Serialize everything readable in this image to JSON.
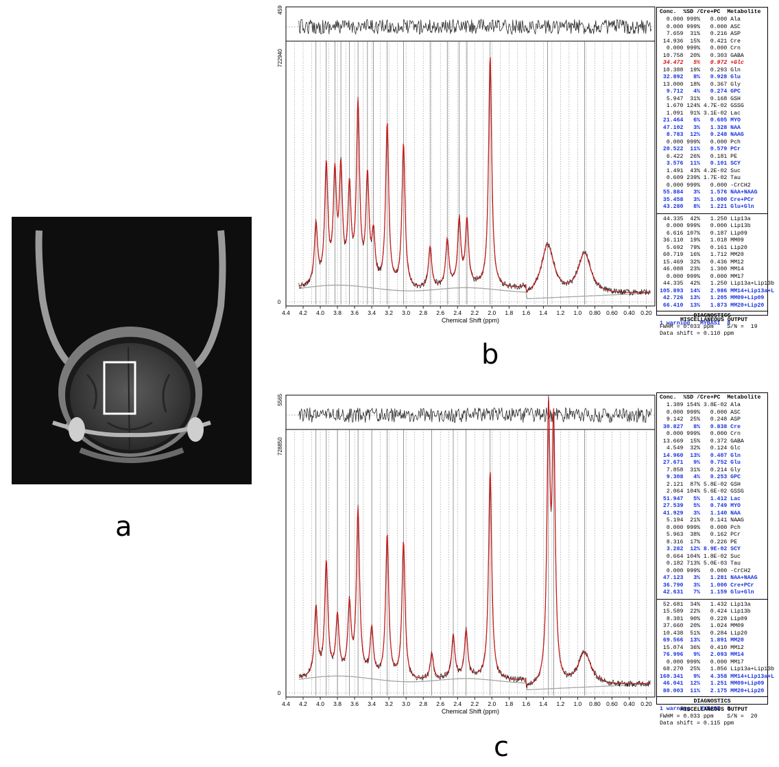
{
  "labels": {
    "a": "a",
    "b": "b",
    "c": "c"
  },
  "table_header": "Conc.  %SD /Cre+PC  Metabolite",
  "diagnostics_title": "DIAGNOSTICS",
  "misc_title": "MISCELLANEOUS OUTPUT",
  "chart_data": [
    {
      "panel": "b",
      "type": "line",
      "xlabel": "Chemical Shift (ppm)",
      "x_ticks": [
        "4.4",
        "4.2",
        "4.0",
        "3.8",
        "3.6",
        "3.4",
        "3.2",
        "3.0",
        "2.8",
        "2.6",
        "2.4",
        "2.2",
        "2.0",
        "1.8",
        "1.6",
        "1.4",
        "1.2",
        "1.0",
        "0.80",
        "0.60",
        "0.40",
        "0.20"
      ],
      "xlim": [
        4.4,
        0.1
      ],
      "residual_ytop": "459",
      "main_ytop": "722940",
      "main_yzero": "0",
      "peaks": [
        {
          "ppm": 4.05,
          "h": 0.23
        },
        {
          "ppm": 3.93,
          "h": 0.45
        },
        {
          "ppm": 3.83,
          "h": 0.4
        },
        {
          "ppm": 3.76,
          "h": 0.42
        },
        {
          "ppm": 3.66,
          "h": 0.35
        },
        {
          "ppm": 3.56,
          "h": 0.68
        },
        {
          "ppm": 3.45,
          "h": 0.4
        },
        {
          "ppm": 3.38,
          "h": 0.18
        },
        {
          "ppm": 3.22,
          "h": 0.63
        },
        {
          "ppm": 3.03,
          "h": 0.56
        },
        {
          "ppm": 2.72,
          "h": 0.16
        },
        {
          "ppm": 2.52,
          "h": 0.18
        },
        {
          "ppm": 2.38,
          "h": 0.25
        },
        {
          "ppm": 2.29,
          "h": 0.25
        },
        {
          "ppm": 2.02,
          "h": 0.9
        },
        {
          "ppm": 1.35,
          "h": 0.2
        },
        {
          "ppm": 0.92,
          "h": 0.16
        }
      ],
      "table": [
        [
          "0.000",
          "999%",
          "0.000",
          "Ala",
          ""
        ],
        [
          "0.000",
          "999%",
          "0.000",
          "ASC",
          ""
        ],
        [
          "7.659",
          "31%",
          "0.216",
          "ASP",
          ""
        ],
        [
          "14.936",
          "15%",
          "0.421",
          "Cre",
          ""
        ],
        [
          "0.000",
          "999%",
          "0.000",
          "Crn",
          ""
        ],
        [
          "10.758",
          "20%",
          "0.303",
          "GABA",
          ""
        ],
        [
          "34.472",
          "5%",
          "0.972",
          "+Glc",
          "r"
        ],
        [
          "10.388",
          "19%",
          "0.293",
          "Gln",
          ""
        ],
        [
          "32.892",
          "8%",
          "0.928",
          "Glu",
          "b"
        ],
        [
          "13.000",
          "18%",
          "0.367",
          "Gly",
          ""
        ],
        [
          "9.712",
          "4%",
          "0.274",
          "GPC",
          "b"
        ],
        [
          "5.947",
          "31%",
          "0.168",
          "GSH",
          ""
        ],
        [
          "1.670",
          "124%",
          "4.7E-02",
          "GSSG",
          ""
        ],
        [
          "1.091",
          "91%",
          "3.1E-02",
          "Lac",
          ""
        ],
        [
          "21.464",
          "6%",
          "0.605",
          "MYO",
          "b"
        ],
        [
          "47.102",
          "3%",
          "1.328",
          "NAA",
          "b"
        ],
        [
          "8.783",
          "12%",
          "0.248",
          "NAAG",
          "b"
        ],
        [
          "0.000",
          "999%",
          "0.000",
          "Pch",
          ""
        ],
        [
          "20.522",
          "11%",
          "0.579",
          "PCr",
          "b"
        ],
        [
          "6.422",
          "26%",
          "0.181",
          "PE",
          ""
        ],
        [
          "3.576",
          "11%",
          "0.101",
          "SCY",
          "b"
        ],
        [
          "1.491",
          "43%",
          "4.2E-02",
          "Suc",
          ""
        ],
        [
          "0.609",
          "239%",
          "1.7E-02",
          "Tau",
          ""
        ],
        [
          "0.000",
          "999%",
          "0.000",
          "-CrCH2",
          ""
        ],
        [
          "55.884",
          "3%",
          "1.576",
          "NAA+NAAG",
          "b"
        ],
        [
          "35.458",
          "3%",
          "1.000",
          "Cre+PCr",
          "b"
        ],
        [
          "43.280",
          "8%",
          "1.221",
          "Glu+Gln",
          "b"
        ]
      ],
      "table2": [
        [
          "44.335",
          "42%",
          "1.250",
          "Lip13a",
          ""
        ],
        [
          "0.000",
          "999%",
          "0.000",
          "Lip13b",
          ""
        ],
        [
          "6.616",
          "107%",
          "0.187",
          "Lip09",
          ""
        ],
        [
          "36.110",
          "19%",
          "1.018",
          "MM09",
          ""
        ],
        [
          "5.692",
          "79%",
          "0.161",
          "Lip20",
          ""
        ],
        [
          "60.719",
          "16%",
          "1.712",
          "MM20",
          ""
        ],
        [
          "15.469",
          "32%",
          "0.436",
          "MM12",
          ""
        ],
        [
          "46.088",
          "23%",
          "1.300",
          "MM14",
          ""
        ],
        [
          "0.000",
          "999%",
          "0.000",
          "MM17",
          ""
        ],
        [
          "44.335",
          "42%",
          "1.250",
          "Lip13a+Lip13b",
          ""
        ],
        [
          "105.893",
          "14%",
          "2.986",
          "MM14+Lip13a+L",
          "b"
        ],
        [
          "42.726",
          "13%",
          "1.205",
          "MM09+Lip09",
          "b"
        ],
        [
          "66.410",
          "13%",
          "1.873",
          "MM20+Lip20",
          "b"
        ]
      ],
      "diag_line": "1 warning   MYBASI  8",
      "misc_lines": [
        "FWHM = 0.033 ppm    S/N =  19",
        "Data shift = 0.110 ppm"
      ]
    },
    {
      "panel": "c",
      "type": "line",
      "xlabel": "Chemical Shift (ppm)",
      "x_ticks": [
        "4.4",
        "4.2",
        "4.0",
        "3.8",
        "3.6",
        "3.4",
        "3.2",
        "3.0",
        "2.8",
        "2.6",
        "2.4",
        "2.2",
        "2.0",
        "1.8",
        "1.6",
        "1.4",
        "1.2",
        "1.0",
        "0.80",
        "0.60",
        "0.40",
        "0.20"
      ],
      "xlim": [
        4.4,
        0.1
      ],
      "residual_ytop": "5565",
      "main_ytop": "728850",
      "main_yzero": "0",
      "peaks": [
        {
          "ppm": 4.05,
          "h": 0.26
        },
        {
          "ppm": 3.93,
          "h": 0.43
        },
        {
          "ppm": 3.8,
          "h": 0.22
        },
        {
          "ppm": 3.66,
          "h": 0.26
        },
        {
          "ppm": 3.56,
          "h": 0.63
        },
        {
          "ppm": 3.4,
          "h": 0.18
        },
        {
          "ppm": 3.22,
          "h": 0.55
        },
        {
          "ppm": 3.03,
          "h": 0.53
        },
        {
          "ppm": 2.7,
          "h": 0.1
        },
        {
          "ppm": 2.45,
          "h": 0.16
        },
        {
          "ppm": 2.3,
          "h": 0.18
        },
        {
          "ppm": 2.02,
          "h": 0.8
        },
        {
          "ppm": 1.34,
          "h": 1.0
        },
        {
          "ppm": 1.28,
          "h": 0.95
        },
        {
          "ppm": 0.92,
          "h": 0.13
        }
      ],
      "table": [
        [
          "1.389",
          "154%",
          "3.8E-02",
          "Ala",
          ""
        ],
        [
          "0.000",
          "999%",
          "0.000",
          "ASC",
          ""
        ],
        [
          "9.142",
          "25%",
          "0.248",
          "ASP",
          ""
        ],
        [
          "30.827",
          "8%",
          "0.838",
          "Cre",
          "b"
        ],
        [
          "0.000",
          "999%",
          "0.000",
          "Crn",
          ""
        ],
        [
          "13.669",
          "15%",
          "0.372",
          "GABA",
          ""
        ],
        [
          "4.549",
          "32%",
          "0.124",
          "Glc",
          ""
        ],
        [
          "14.960",
          "13%",
          "0.407",
          "Gln",
          "b"
        ],
        [
          "27.671",
          "9%",
          "0.752",
          "Glu",
          "b"
        ],
        [
          "7.858",
          "31%",
          "0.214",
          "Gly",
          ""
        ],
        [
          "9.308",
          "4%",
          "0.253",
          "GPC",
          "b"
        ],
        [
          "2.121",
          "87%",
          "5.8E-02",
          "GSH",
          ""
        ],
        [
          "2.064",
          "104%",
          "5.6E-02",
          "GSSG",
          ""
        ],
        [
          "51.947",
          "5%",
          "1.412",
          "Lac",
          "b"
        ],
        [
          "27.539",
          "5%",
          "0.749",
          "MYO",
          "b"
        ],
        [
          "41.929",
          "3%",
          "1.140",
          "NAA",
          "b"
        ],
        [
          "5.194",
          "21%",
          "0.141",
          "NAAG",
          ""
        ],
        [
          "0.000",
          "999%",
          "0.000",
          "Pch",
          ""
        ],
        [
          "5.963",
          "38%",
          "0.162",
          "PCr",
          ""
        ],
        [
          "8.316",
          "17%",
          "0.226",
          "PE",
          ""
        ],
        [
          "3.282",
          "12%",
          "8.9E-02",
          "SCY",
          "b"
        ],
        [
          "0.664",
          "104%",
          "1.8E-02",
          "Suc",
          ""
        ],
        [
          "0.182",
          "713%",
          "5.0E-03",
          "Tau",
          ""
        ],
        [
          "0.000",
          "999%",
          "0.000",
          "-CrCH2",
          ""
        ],
        [
          "47.123",
          "3%",
          "1.281",
          "NAA+NAAG",
          "b"
        ],
        [
          "36.790",
          "3%",
          "1.000",
          "Cre+PCr",
          "b"
        ],
        [
          "42.631",
          "7%",
          "1.159",
          "Glu+Gln",
          "b"
        ]
      ],
      "table2": [
        [
          "52.681",
          "34%",
          "1.432",
          "Lip13a",
          ""
        ],
        [
          "15.589",
          "22%",
          "0.424",
          "Lip13b",
          ""
        ],
        [
          "8.381",
          "90%",
          "0.228",
          "Lip09",
          ""
        ],
        [
          "37.660",
          "20%",
          "1.024",
          "MM09",
          ""
        ],
        [
          "10.438",
          "51%",
          "0.284",
          "Lip20",
          ""
        ],
        [
          "69.566",
          "13%",
          "1.891",
          "MM20",
          "b"
        ],
        [
          "15.074",
          "36%",
          "0.410",
          "MM12",
          ""
        ],
        [
          "76.996",
          "9%",
          "2.093",
          "MM14",
          "b"
        ],
        [
          "0.000",
          "999%",
          "0.000",
          "MM17",
          ""
        ],
        [
          "68.270",
          "25%",
          "1.856",
          "Lip13a+Lip13b",
          ""
        ],
        [
          "160.341",
          "9%",
          "4.358",
          "MM14+Lip13a+L",
          "b"
        ],
        [
          "46.041",
          "12%",
          "1.251",
          "MM09+Lip09",
          "b"
        ],
        [
          "80.003",
          "11%",
          "2.175",
          "MM20+Lip20",
          "b"
        ]
      ],
      "diag_line": "1 warning   MYBASI  8",
      "misc_lines": [
        "FWHM = 0.033 ppm    S/N =  20",
        "Data shift = 0.115 ppm"
      ]
    }
  ]
}
